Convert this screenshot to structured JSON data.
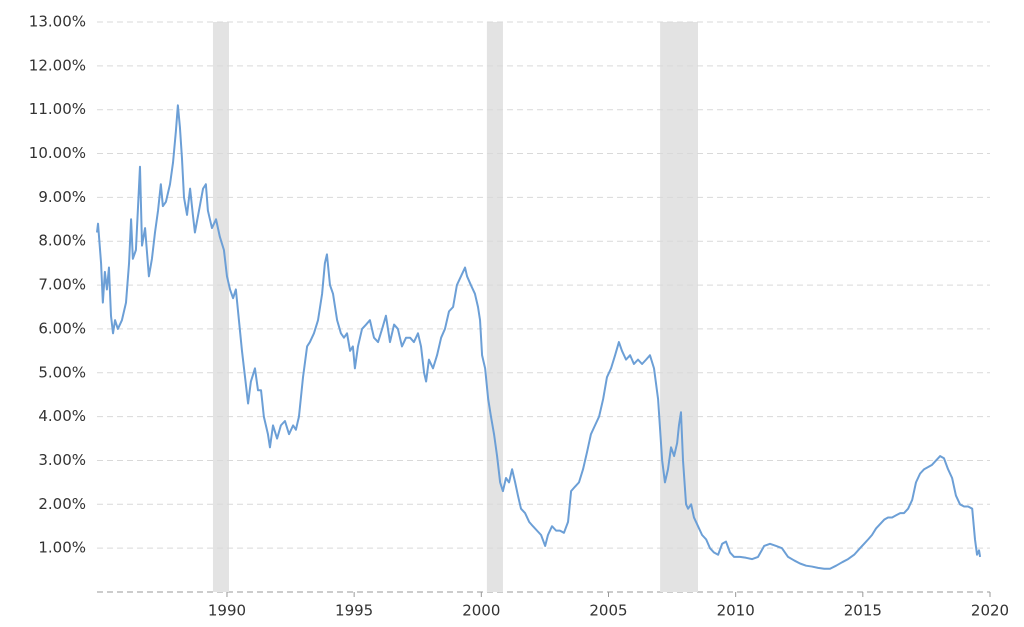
{
  "chart_data": {
    "type": "line",
    "color": "#6c9fd6",
    "shade_color": "#e3e3e3",
    "grid": true,
    "xlim": [
      1984.89,
      2020
    ],
    "xticks": [
      1990,
      1995,
      2000,
      2005,
      2010,
      2015,
      2020
    ],
    "ylim": [
      0,
      13
    ],
    "yticks": [
      {
        "value": 1,
        "label": "1.00%"
      },
      {
        "value": 2,
        "label": "2.00%"
      },
      {
        "value": 3,
        "label": "3.00%"
      },
      {
        "value": 4,
        "label": "4.00%"
      },
      {
        "value": 5,
        "label": "5.00%"
      },
      {
        "value": 6,
        "label": "6.00%"
      },
      {
        "value": 7,
        "label": "7.00%"
      },
      {
        "value": 8,
        "label": "8.00%"
      },
      {
        "value": 9,
        "label": "9.00%"
      },
      {
        "value": 10,
        "label": "10.00%"
      },
      {
        "value": 11,
        "label": "11.00%"
      },
      {
        "value": 12,
        "label": "12.00%"
      },
      {
        "value": 13,
        "label": "13.00%"
      }
    ],
    "shaded_ranges": [
      [
        1989.45,
        1990.08
      ],
      [
        2000.22,
        2000.85
      ],
      [
        2007.03,
        2008.52
      ]
    ],
    "x": [
      1984.89,
      1984.93,
      1985.05,
      1985.12,
      1985.2,
      1985.28,
      1985.36,
      1985.44,
      1985.52,
      1985.6,
      1985.71,
      1985.87,
      1986.03,
      1986.15,
      1986.23,
      1986.3,
      1986.42,
      1986.58,
      1986.66,
      1986.78,
      1986.93,
      1987.05,
      1987.17,
      1987.29,
      1987.4,
      1987.48,
      1987.6,
      1987.76,
      1987.88,
      1987.99,
      1988.07,
      1988.15,
      1988.23,
      1988.31,
      1988.43,
      1988.55,
      1988.66,
      1988.74,
      1988.9,
      1989.06,
      1989.17,
      1989.25,
      1989.41,
      1989.57,
      1989.72,
      1989.88,
      1990.0,
      1990.12,
      1990.24,
      1990.35,
      1990.47,
      1990.59,
      1990.71,
      1990.83,
      1990.94,
      1991.1,
      1991.22,
      1991.34,
      1991.45,
      1991.61,
      1991.69,
      1991.81,
      1991.97,
      1992.12,
      1992.28,
      1992.44,
      1992.6,
      1992.71,
      1992.83,
      1992.99,
      1993.15,
      1993.26,
      1993.42,
      1993.58,
      1993.74,
      1993.85,
      1993.93,
      1994.05,
      1994.17,
      1994.33,
      1994.48,
      1994.6,
      1994.72,
      1994.84,
      1994.95,
      1995.03,
      1995.15,
      1995.31,
      1995.47,
      1995.62,
      1995.78,
      1995.94,
      1996.1,
      1996.25,
      1996.41,
      1996.57,
      1996.72,
      1996.88,
      1997.04,
      1997.2,
      1997.35,
      1997.51,
      1997.63,
      1997.75,
      1997.83,
      1997.94,
      1998.1,
      1998.26,
      1998.42,
      1998.57,
      1998.73,
      1998.89,
      1999.04,
      1999.2,
      1999.36,
      1999.44,
      1999.59,
      1999.75,
      1999.87,
      1999.95,
      2000.03,
      2000.15,
      2000.27,
      2000.38,
      2000.5,
      2000.62,
      2000.74,
      2000.85,
      2000.97,
      2001.09,
      2001.21,
      2001.33,
      2001.44,
      2001.56,
      2001.72,
      2001.88,
      2002.03,
      2002.19,
      2002.35,
      2002.51,
      2002.62,
      2002.78,
      2002.94,
      2003.09,
      2003.25,
      2003.41,
      2003.53,
      2003.68,
      2003.84,
      2004.0,
      2004.16,
      2004.31,
      2004.47,
      2004.63,
      2004.79,
      2004.94,
      2005.1,
      2005.26,
      2005.41,
      2005.53,
      2005.69,
      2005.85,
      2006.0,
      2006.16,
      2006.32,
      2006.48,
      2006.63,
      2006.79,
      2006.95,
      2007.03,
      2007.11,
      2007.22,
      2007.34,
      2007.46,
      2007.58,
      2007.7,
      2007.77,
      2007.85,
      2007.93,
      2008.05,
      2008.13,
      2008.25,
      2008.36,
      2008.52,
      2008.68,
      2008.84,
      2008.99,
      2009.15,
      2009.31,
      2009.47,
      2009.62,
      2009.78,
      2009.94,
      2010.17,
      2010.41,
      2010.65,
      2010.88,
      2011.12,
      2011.35,
      2011.59,
      2011.82,
      2012.06,
      2012.3,
      2012.53,
      2012.77,
      2013.0,
      2013.24,
      2013.48,
      2013.71,
      2013.95,
      2014.19,
      2014.42,
      2014.66,
      2014.89,
      2015.05,
      2015.21,
      2015.36,
      2015.52,
      2015.68,
      2015.84,
      2015.99,
      2016.15,
      2016.31,
      2016.47,
      2016.62,
      2016.78,
      2016.94,
      2017.09,
      2017.25,
      2017.41,
      2017.57,
      2017.72,
      2017.88,
      2018.04,
      2018.19,
      2018.35,
      2018.51,
      2018.66,
      2018.82,
      2018.98,
      2019.14,
      2019.3,
      2019.41,
      2019.49,
      2019.57,
      2019.61
    ],
    "values": [
      8.2,
      8.4,
      7.5,
      6.6,
      7.3,
      6.9,
      7.4,
      6.3,
      5.9,
      6.2,
      6.0,
      6.2,
      6.6,
      7.5,
      8.5,
      7.6,
      7.8,
      9.7,
      7.9,
      8.3,
      7.2,
      7.6,
      8.2,
      8.7,
      9.3,
      8.8,
      8.9,
      9.3,
      9.8,
      10.5,
      11.1,
      10.6,
      9.9,
      9.0,
      8.6,
      9.2,
      8.6,
      8.2,
      8.7,
      9.2,
      9.3,
      8.7,
      8.3,
      8.5,
      8.1,
      7.8,
      7.2,
      6.9,
      6.7,
      6.9,
      6.2,
      5.5,
      4.9,
      4.3,
      4.8,
      5.1,
      4.6,
      4.6,
      4.0,
      3.6,
      3.3,
      3.8,
      3.5,
      3.8,
      3.9,
      3.6,
      3.8,
      3.7,
      4.0,
      4.9,
      5.6,
      5.7,
      5.9,
      6.2,
      6.8,
      7.5,
      7.7,
      7.0,
      6.8,
      6.2,
      5.9,
      5.8,
      5.9,
      5.5,
      5.6,
      5.1,
      5.6,
      6.0,
      6.1,
      6.2,
      5.8,
      5.7,
      6.0,
      6.3,
      5.7,
      6.1,
      6.0,
      5.6,
      5.8,
      5.8,
      5.7,
      5.9,
      5.6,
      5.0,
      4.8,
      5.3,
      5.1,
      5.4,
      5.8,
      6.0,
      6.4,
      6.5,
      7.0,
      7.2,
      7.4,
      7.2,
      7.0,
      6.8,
      6.5,
      6.2,
      5.4,
      5.1,
      4.4,
      4.0,
      3.6,
      3.1,
      2.5,
      2.3,
      2.6,
      2.5,
      2.8,
      2.5,
      2.2,
      1.9,
      1.8,
      1.6,
      1.5,
      1.4,
      1.3,
      1.05,
      1.3,
      1.5,
      1.4,
      1.4,
      1.35,
      1.6,
      2.3,
      2.4,
      2.5,
      2.8,
      3.2,
      3.6,
      3.8,
      4.0,
      4.4,
      4.9,
      5.1,
      5.4,
      5.7,
      5.5,
      5.3,
      5.4,
      5.2,
      5.3,
      5.2,
      5.3,
      5.4,
      5.1,
      4.4,
      3.7,
      3.0,
      2.5,
      2.8,
      3.3,
      3.1,
      3.4,
      3.8,
      4.1,
      3.0,
      2.0,
      1.9,
      2.0,
      1.7,
      1.5,
      1.3,
      1.2,
      1.0,
      0.9,
      0.85,
      1.1,
      1.15,
      0.9,
      0.8,
      0.8,
      0.78,
      0.75,
      0.8,
      1.05,
      1.1,
      1.05,
      1.0,
      0.8,
      0.72,
      0.65,
      0.6,
      0.58,
      0.55,
      0.53,
      0.53,
      0.6,
      0.68,
      0.75,
      0.85,
      1.0,
      1.1,
      1.2,
      1.3,
      1.45,
      1.55,
      1.65,
      1.7,
      1.7,
      1.75,
      1.8,
      1.8,
      1.9,
      2.1,
      2.5,
      2.7,
      2.8,
      2.85,
      2.9,
      3.0,
      3.1,
      3.05,
      2.8,
      2.6,
      2.2,
      2.0,
      1.95,
      1.95,
      1.9,
      1.2,
      0.85,
      0.95,
      0.8
    ]
  }
}
